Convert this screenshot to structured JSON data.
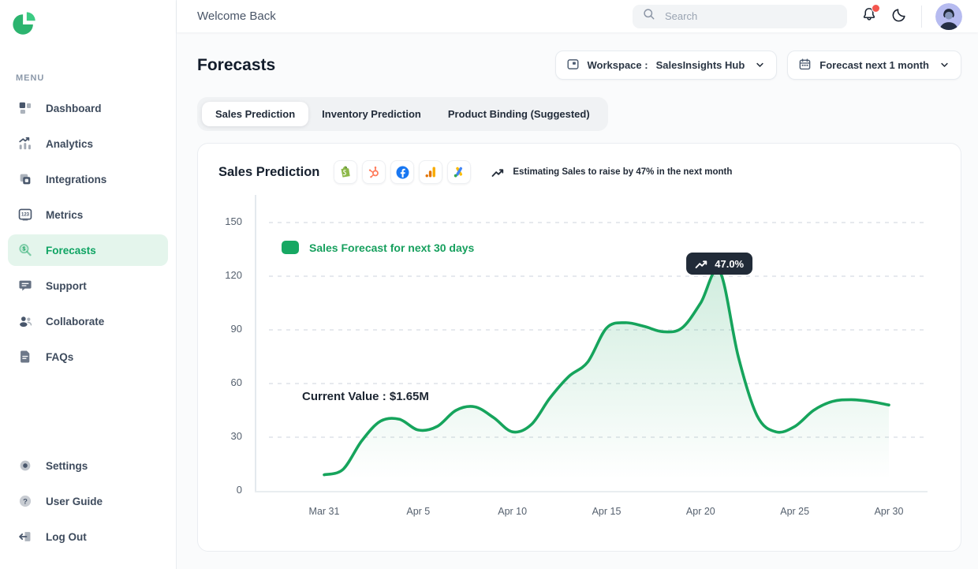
{
  "header": {
    "welcome": "Welcome Back",
    "search_placeholder": "Search"
  },
  "sidebar": {
    "menu_label": "MENU",
    "items": [
      {
        "label": "Dashboard",
        "icon": "dashboard",
        "active": false
      },
      {
        "label": "Analytics",
        "icon": "analytics",
        "active": false
      },
      {
        "label": "Integrations",
        "icon": "integrations",
        "active": false
      },
      {
        "label": "Metrics",
        "icon": "metrics",
        "active": false
      },
      {
        "label": "Forecasts",
        "icon": "forecasts",
        "active": true
      },
      {
        "label": "Support",
        "icon": "support",
        "active": false
      },
      {
        "label": "Collaborate",
        "icon": "collaborate",
        "active": false
      },
      {
        "label": "FAQs",
        "icon": "faqs",
        "active": false
      }
    ],
    "bottom_items": [
      {
        "label": "Settings",
        "icon": "settings"
      },
      {
        "label": "User Guide",
        "icon": "user-guide"
      },
      {
        "label": "Log Out",
        "icon": "logout"
      }
    ]
  },
  "page": {
    "title": "Forecasts",
    "workspace": {
      "label": "Workspace :",
      "value": "SalesInsights Hub"
    },
    "forecast_select": {
      "value": "Forecast next 1 month"
    }
  },
  "tabs": [
    {
      "label": "Sales Prediction",
      "active": true
    },
    {
      "label": "Inventory Prediction",
      "active": false
    },
    {
      "label": "Product Binding (Suggested)",
      "active": false
    }
  ],
  "card": {
    "title": "Sales Prediction",
    "integrations": [
      "shopify",
      "hubspot",
      "facebook",
      "google-analytics",
      "google-ads"
    ],
    "insight": "Estimating Sales to raise by 47% in the next month"
  },
  "chart_data": {
    "type": "area",
    "title": "Sales Prediction",
    "legend_label": "Sales Forecast for next 30 days",
    "x_ticks": [
      "Mar 31",
      "Apr 5",
      "Apr 10",
      "Apr 15",
      "Apr 20",
      "Apr 25",
      "Apr 30"
    ],
    "x_tick_days": [
      0,
      5,
      10,
      15,
      20,
      25,
      30
    ],
    "values": [
      9,
      12,
      28,
      39,
      40,
      34,
      36,
      45,
      47,
      41,
      33,
      37,
      52,
      64,
      72,
      91,
      94,
      92,
      89,
      91,
      105,
      123,
      75,
      42,
      33,
      36,
      45,
      50,
      51,
      50,
      48
    ],
    "yticks": [
      0,
      30,
      60,
      90,
      120,
      150
    ],
    "ylim": [
      0,
      165
    ],
    "grid": "dashed-horizontal",
    "legend_position": "top-left-inside",
    "line_color": "#16a45c",
    "fill_color": "#16a45c",
    "tooltip_bg": "#212b38",
    "annotations": {
      "current_value_label": "Current Value : $1.65M",
      "tooltip_label": "47.0%",
      "tooltip_day": 21
    }
  }
}
